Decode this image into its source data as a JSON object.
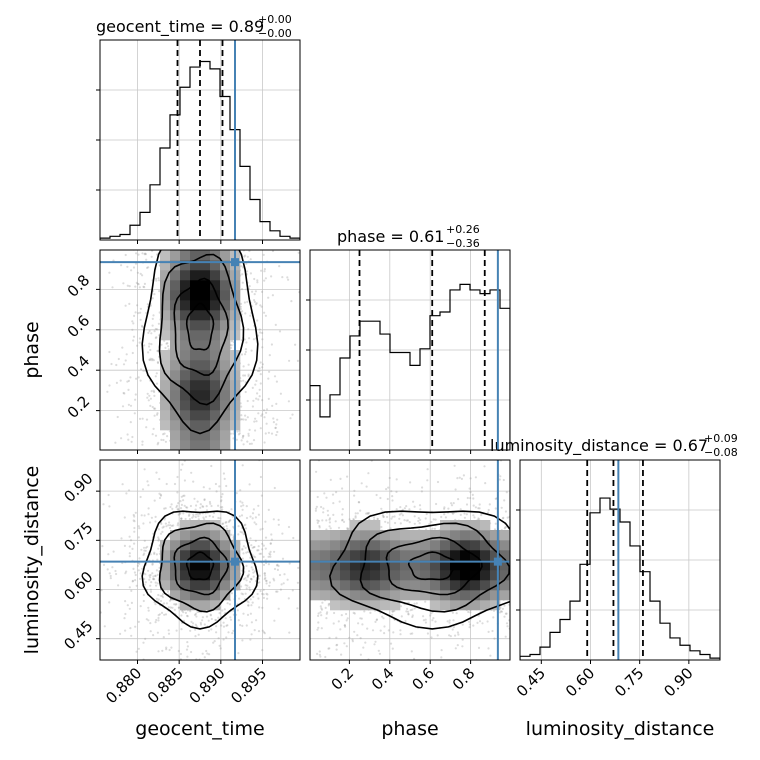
{
  "chart_data": {
    "type": "corner",
    "parameters": [
      "geocent_time",
      "phase",
      "luminosity_distance"
    ],
    "truths": [
      0.8917,
      0.935,
      0.685
    ],
    "truth_color": "#4682b4",
    "ranges": [
      [
        0.8755,
        0.8995
      ],
      [
        0.005,
        0.995
      ],
      [
        0.385,
        0.995
      ]
    ],
    "ticks": {
      "geocent_time": [
        "0.880",
        "0.885",
        "0.890",
        "0.895"
      ],
      "phase": [
        "0.2",
        "0.4",
        "0.6",
        "0.8"
      ],
      "luminosity_distance": [
        "0.45",
        "0.60",
        "0.75",
        "0.90"
      ]
    },
    "titles": [
      {
        "name": "geocent_time",
        "text": "geocent_time = 0.89",
        "plus": "+0.00",
        "minus": "−0.00"
      },
      {
        "name": "phase",
        "text": "phase = 0.61",
        "plus": "+0.26",
        "minus": "−0.36"
      },
      {
        "name": "luminosity_distance",
        "text": "luminosity_distance = 0.67",
        "plus": "+0.09",
        "minus": "−0.08"
      }
    ],
    "quantiles": {
      "geocent_time": [
        0.8848,
        0.8875,
        0.8902
      ],
      "phase": [
        0.25,
        0.61,
        0.87
      ],
      "luminosity_distance": [
        0.59,
        0.67,
        0.76
      ]
    },
    "histograms": {
      "geocent_time": {
        "x_range": [
          0.8755,
          0.8995
        ],
        "values": [
          0.01,
          0.02,
          0.03,
          0.08,
          0.15,
          0.3,
          0.5,
          0.68,
          0.83,
          0.94,
          0.97,
          0.93,
          0.78,
          0.6,
          0.4,
          0.22,
          0.1,
          0.05,
          0.02,
          0.01
        ]
      },
      "phase": {
        "x_range": [
          0.005,
          0.995
        ],
        "values": [
          0.35,
          0.18,
          0.3,
          0.5,
          0.62,
          0.7,
          0.7,
          0.63,
          0.53,
          0.53,
          0.46,
          0.55,
          0.73,
          0.75,
          0.87,
          0.9,
          0.87,
          0.85,
          0.87,
          0.77
        ]
      },
      "luminosity_distance": {
        "x_range": [
          0.385,
          0.995
        ],
        "values": [
          0.02,
          0.03,
          0.07,
          0.15,
          0.22,
          0.32,
          0.52,
          0.8,
          0.88,
          0.82,
          0.75,
          0.62,
          0.48,
          0.32,
          0.2,
          0.12,
          0.08,
          0.05,
          0.03,
          0.01
        ]
      }
    }
  }
}
